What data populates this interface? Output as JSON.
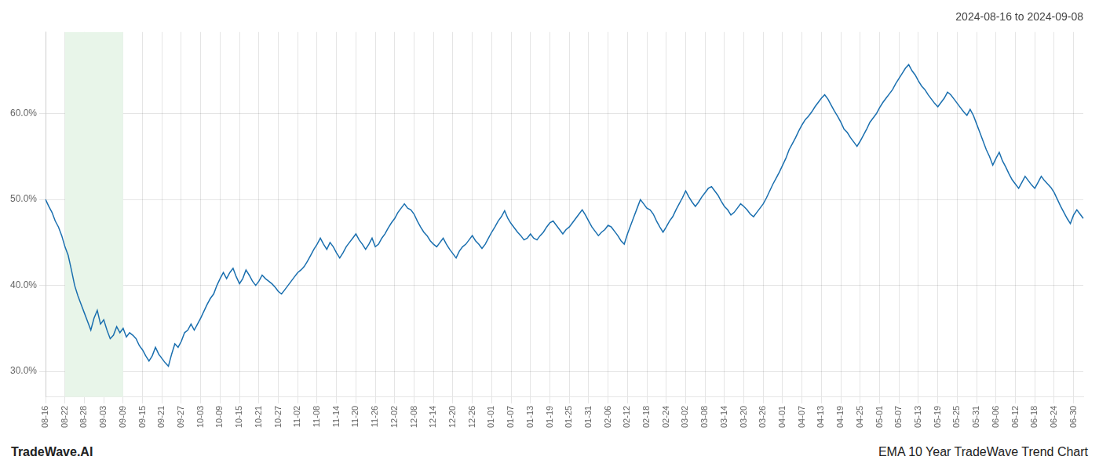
{
  "chart_data": {
    "type": "line",
    "title": "2024-08-16 to 2024-09-08",
    "annotations": [
      "TradeWave.AI",
      "EMA 10 Year TradeWave Trend Chart"
    ],
    "color": "#1a6faf",
    "grid": true,
    "ylim": [
      0.27,
      0.695
    ],
    "yticks": [
      {
        "value": 0.3,
        "label": "30.0%"
      },
      {
        "value": 0.4,
        "label": "40.0%"
      },
      {
        "value": 0.5,
        "label": "50.0%"
      },
      {
        "value": 0.6,
        "label": "60.0%"
      }
    ],
    "highlight": {
      "start": "08-22",
      "end": "09-09",
      "color": "#e8f5e9"
    },
    "categories": [
      "08-16",
      null,
      null,
      null,
      null,
      null,
      "08-22",
      null,
      null,
      null,
      null,
      null,
      "08-28",
      null,
      null,
      null,
      null,
      null,
      "09-03",
      null,
      null,
      null,
      null,
      null,
      "09-09",
      null,
      null,
      null,
      null,
      null,
      "09-15",
      null,
      null,
      null,
      null,
      null,
      "09-21",
      null,
      null,
      null,
      null,
      null,
      "09-27",
      null,
      null,
      null,
      null,
      null,
      "10-03",
      null,
      null,
      null,
      null,
      null,
      "10-09",
      null,
      null,
      null,
      null,
      null,
      "10-15",
      null,
      null,
      null,
      null,
      null,
      "10-21",
      null,
      null,
      null,
      null,
      null,
      "10-27",
      null,
      null,
      null,
      null,
      null,
      "11-02",
      null,
      null,
      null,
      null,
      null,
      "11-08",
      null,
      null,
      null,
      null,
      null,
      "11-14",
      null,
      null,
      null,
      null,
      null,
      "11-20",
      null,
      null,
      null,
      null,
      null,
      "11-26",
      null,
      null,
      null,
      null,
      null,
      "12-02",
      null,
      null,
      null,
      null,
      null,
      "12-08",
      null,
      null,
      null,
      null,
      null,
      "12-14",
      null,
      null,
      null,
      null,
      null,
      "12-20",
      null,
      null,
      null,
      null,
      null,
      "12-26",
      null,
      null,
      null,
      null,
      null,
      "01-01",
      null,
      null,
      null,
      null,
      null,
      "01-07",
      null,
      null,
      null,
      null,
      null,
      "01-13",
      null,
      null,
      null,
      null,
      null,
      "01-19",
      null,
      null,
      null,
      null,
      null,
      "01-25",
      null,
      null,
      null,
      null,
      null,
      "01-31",
      null,
      null,
      null,
      null,
      null,
      "02-06",
      null,
      null,
      null,
      null,
      null,
      "02-12",
      null,
      null,
      null,
      null,
      null,
      "02-18",
      null,
      null,
      null,
      null,
      null,
      "02-24",
      null,
      null,
      null,
      null,
      null,
      "03-02",
      null,
      null,
      null,
      null,
      null,
      "03-08",
      null,
      null,
      null,
      null,
      null,
      "03-14",
      null,
      null,
      null,
      null,
      null,
      "03-20",
      null,
      null,
      null,
      null,
      null,
      "03-26",
      null,
      null,
      null,
      null,
      null,
      "04-01",
      null,
      null,
      null,
      null,
      null,
      "04-07",
      null,
      null,
      null,
      null,
      null,
      "04-13",
      null,
      null,
      null,
      null,
      null,
      "04-19",
      null,
      null,
      null,
      null,
      null,
      "04-25",
      null,
      null,
      null,
      null,
      null,
      "05-01",
      null,
      null,
      null,
      null,
      null,
      "05-07",
      null,
      null,
      null,
      null,
      null,
      "05-13",
      null,
      null,
      null,
      null,
      null,
      "05-19",
      null,
      null,
      null,
      null,
      null,
      "05-25",
      null,
      null,
      null,
      null,
      null,
      "05-31",
      null,
      null,
      null,
      null,
      null,
      "06-06",
      null,
      null,
      null,
      null,
      null,
      "06-12",
      null,
      null,
      null,
      null,
      null,
      "06-18",
      null,
      null,
      null,
      null,
      null,
      "06-24",
      null,
      null,
      null,
      null,
      null,
      "06-30",
      null,
      null,
      null
    ],
    "values": [
      0.5,
      0.492,
      0.485,
      0.475,
      0.468,
      0.458,
      0.445,
      0.435,
      0.418,
      0.4,
      0.388,
      0.378,
      0.368,
      0.358,
      0.348,
      0.362,
      0.371,
      0.355,
      0.36,
      0.348,
      0.338,
      0.342,
      0.352,
      0.345,
      0.35,
      0.34,
      0.345,
      0.342,
      0.338,
      0.33,
      0.325,
      0.318,
      0.312,
      0.318,
      0.328,
      0.32,
      0.315,
      0.31,
      0.306,
      0.32,
      0.332,
      0.328,
      0.335,
      0.345,
      0.348,
      0.355,
      0.348,
      0.355,
      0.362,
      0.37,
      0.378,
      0.385,
      0.39,
      0.4,
      0.408,
      0.415,
      0.408,
      0.415,
      0.42,
      0.41,
      0.402,
      0.408,
      0.418,
      0.412,
      0.405,
      0.4,
      0.405,
      0.412,
      0.408,
      0.405,
      0.402,
      0.398,
      0.393,
      0.39,
      0.395,
      0.4,
      0.405,
      0.41,
      0.415,
      0.418,
      0.422,
      0.428,
      0.435,
      0.442,
      0.448,
      0.455,
      0.448,
      0.442,
      0.45,
      0.445,
      0.438,
      0.432,
      0.438,
      0.445,
      0.45,
      0.455,
      0.46,
      0.453,
      0.448,
      0.442,
      0.448,
      0.455,
      0.445,
      0.448,
      0.455,
      0.46,
      0.467,
      0.473,
      0.478,
      0.485,
      0.49,
      0.495,
      0.49,
      0.488,
      0.483,
      0.475,
      0.468,
      0.462,
      0.458,
      0.452,
      0.448,
      0.445,
      0.45,
      0.455,
      0.448,
      0.442,
      0.437,
      0.432,
      0.44,
      0.445,
      0.448,
      0.453,
      0.458,
      0.452,
      0.448,
      0.443,
      0.448,
      0.455,
      0.462,
      0.468,
      0.475,
      0.48,
      0.487,
      0.478,
      0.472,
      0.467,
      0.462,
      0.458,
      0.453,
      0.455,
      0.46,
      0.455,
      0.453,
      0.458,
      0.462,
      0.468,
      0.473,
      0.475,
      0.47,
      0.465,
      0.46,
      0.465,
      0.468,
      0.473,
      0.478,
      0.483,
      0.488,
      0.482,
      0.475,
      0.468,
      0.463,
      0.458,
      0.462,
      0.465,
      0.47,
      0.468,
      0.463,
      0.458,
      0.452,
      0.448,
      0.46,
      0.47,
      0.48,
      0.49,
      0.5,
      0.495,
      0.49,
      0.488,
      0.483,
      0.475,
      0.468,
      0.462,
      0.468,
      0.475,
      0.48,
      0.488,
      0.495,
      0.502,
      0.51,
      0.503,
      0.497,
      0.492,
      0.497,
      0.503,
      0.508,
      0.513,
      0.515,
      0.51,
      0.505,
      0.498,
      0.492,
      0.488,
      0.482,
      0.485,
      0.49,
      0.495,
      0.492,
      0.488,
      0.483,
      0.48,
      0.485,
      0.49,
      0.495,
      0.502,
      0.51,
      0.518,
      0.525,
      0.532,
      0.54,
      0.548,
      0.558,
      0.565,
      0.572,
      0.58,
      0.587,
      0.593,
      0.597,
      0.602,
      0.608,
      0.613,
      0.618,
      0.622,
      0.617,
      0.61,
      0.603,
      0.597,
      0.59,
      0.582,
      0.578,
      0.572,
      0.567,
      0.562,
      0.568,
      0.575,
      0.582,
      0.59,
      0.595,
      0.6,
      0.607,
      0.613,
      0.618,
      0.623,
      0.628,
      0.635,
      0.641,
      0.647,
      0.653,
      0.657,
      0.65,
      0.645,
      0.638,
      0.632,
      0.628,
      0.622,
      0.617,
      0.612,
      0.608,
      0.613,
      0.618,
      0.625,
      0.622,
      0.617,
      0.612,
      0.607,
      0.602,
      0.598,
      0.605,
      0.598,
      0.588,
      0.578,
      0.568,
      0.558,
      0.55,
      0.54,
      0.548,
      0.555,
      0.545,
      0.538,
      0.53,
      0.523,
      0.518,
      0.513,
      0.52,
      0.527,
      0.522,
      0.517,
      0.513,
      0.52,
      0.527,
      0.522,
      0.518,
      0.514,
      0.508,
      0.5,
      0.492,
      0.485,
      0.478,
      0.472,
      0.482,
      0.488,
      0.483,
      0.478
    ]
  }
}
